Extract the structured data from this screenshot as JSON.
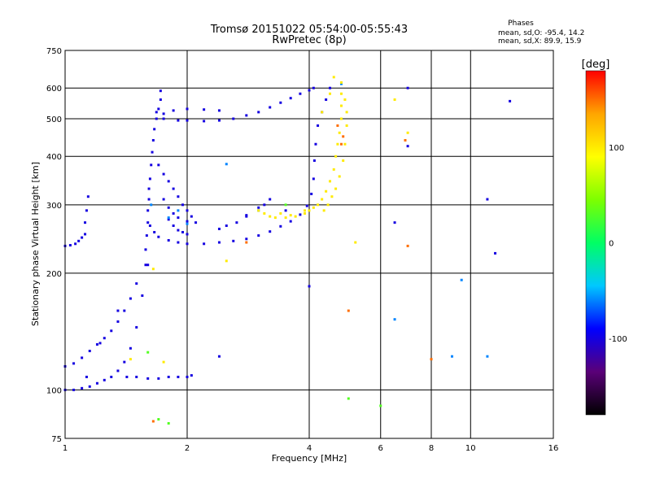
{
  "chart_data": {
    "type": "scatter",
    "title": "Tromsø 20151022 05:54:00-05:55:43",
    "subtitle": "RwPretec (8p)",
    "xlabel": "Frequency [MHz]",
    "ylabel": "Stationary phase Virtual Height [km]",
    "x_scale": "log",
    "y_scale": "log",
    "xlim": [
      1,
      16
    ],
    "ylim": [
      75,
      750
    ],
    "x_ticks": [
      1,
      2,
      4,
      6,
      8,
      10,
      16
    ],
    "y_ticks": [
      75,
      100,
      200,
      300,
      400,
      500,
      600,
      750
    ],
    "x_grid": [
      1,
      2,
      4,
      6,
      8,
      10,
      16
    ],
    "y_grid": [
      100,
      200,
      300,
      400,
      500,
      600
    ],
    "grid": true,
    "phases_header": "Phases",
    "phase_stats": [
      "mean, sd,O:  -95.4, 14.2",
      "mean, sd,X:  89.9, 15.9"
    ],
    "colorbar": {
      "label": "[deg]",
      "range": [
        -180,
        180
      ],
      "ticks": [
        100,
        0,
        -100
      ],
      "colors": [
        "#000000",
        "#5a0078",
        "#0000ff",
        "#00c8ff",
        "#00ff64",
        "#7dff00",
        "#ffff00",
        "#ffa500",
        "#ff0000"
      ]
    },
    "series": [
      {
        "phase": -100,
        "points": [
          [
            1.0,
            100
          ],
          [
            1.05,
            100
          ],
          [
            1.1,
            101
          ],
          [
            1.15,
            102
          ],
          [
            1.2,
            104
          ],
          [
            1.25,
            106
          ],
          [
            1.3,
            108
          ],
          [
            1.35,
            112
          ],
          [
            1.4,
            118
          ],
          [
            1.45,
            128
          ],
          [
            1.5,
            145
          ],
          [
            1.55,
            175
          ],
          [
            1.6,
            210
          ],
          [
            1.0,
            115
          ],
          [
            1.05,
            117
          ],
          [
            1.1,
            121
          ],
          [
            1.15,
            126
          ],
          [
            1.2,
            131
          ],
          [
            1.25,
            136
          ],
          [
            1.3,
            142
          ],
          [
            1.35,
            150
          ],
          [
            1.4,
            160
          ],
          [
            1.45,
            172
          ],
          [
            1.5,
            188
          ],
          [
            1.0,
            235
          ],
          [
            1.03,
            236
          ],
          [
            1.06,
            238
          ],
          [
            1.08,
            242
          ],
          [
            1.1,
            247
          ],
          [
            1.12,
            252
          ],
          [
            1.12,
            270
          ],
          [
            1.13,
            290
          ],
          [
            1.14,
            315
          ],
          [
            1.42,
            108
          ],
          [
            1.5,
            108
          ],
          [
            1.6,
            107
          ],
          [
            1.7,
            107
          ],
          [
            1.8,
            108
          ],
          [
            1.9,
            108
          ],
          [
            2.0,
            108
          ],
          [
            2.05,
            109
          ],
          [
            1.58,
            210
          ],
          [
            1.58,
            230
          ],
          [
            1.59,
            250
          ],
          [
            1.6,
            270
          ],
          [
            1.6,
            290
          ],
          [
            1.61,
            310
          ],
          [
            1.61,
            330
          ],
          [
            1.62,
            350
          ],
          [
            1.63,
            380
          ],
          [
            1.64,
            410
          ],
          [
            1.65,
            440
          ],
          [
            1.66,
            470
          ],
          [
            1.68,
            500
          ],
          [
            1.7,
            530
          ],
          [
            1.72,
            560
          ],
          [
            1.72,
            590
          ],
          [
            1.62,
            265
          ],
          [
            1.66,
            255
          ],
          [
            1.7,
            248
          ],
          [
            1.8,
            243
          ],
          [
            1.9,
            240
          ],
          [
            2.0,
            238
          ],
          [
            2.2,
            238
          ],
          [
            2.4,
            240
          ],
          [
            2.6,
            242
          ],
          [
            2.8,
            245
          ],
          [
            3.0,
            250
          ],
          [
            3.2,
            256
          ],
          [
            3.4,
            264
          ],
          [
            3.6,
            272
          ],
          [
            3.8,
            283
          ],
          [
            3.95,
            298
          ],
          [
            4.05,
            320
          ],
          [
            4.1,
            350
          ],
          [
            4.12,
            390
          ],
          [
            4.15,
            430
          ],
          [
            4.2,
            480
          ],
          [
            4.3,
            520
          ],
          [
            4.4,
            560
          ],
          [
            1.75,
            500
          ],
          [
            1.9,
            495
          ],
          [
            2.0,
            495
          ],
          [
            2.2,
            493
          ],
          [
            2.4,
            495
          ],
          [
            2.6,
            500
          ],
          [
            2.8,
            510
          ],
          [
            3.0,
            520
          ],
          [
            3.2,
            535
          ],
          [
            3.4,
            550
          ],
          [
            3.6,
            565
          ],
          [
            3.8,
            580
          ],
          [
            4.0,
            592
          ],
          [
            4.1,
            600
          ],
          [
            1.68,
            520
          ],
          [
            1.75,
            515
          ],
          [
            1.85,
            525
          ],
          [
            2.0,
            530
          ],
          [
            2.2,
            528
          ],
          [
            2.4,
            525
          ],
          [
            1.7,
            380
          ],
          [
            1.75,
            360
          ],
          [
            1.8,
            345
          ],
          [
            1.85,
            330
          ],
          [
            1.9,
            315
          ],
          [
            1.95,
            300
          ],
          [
            2.0,
            290
          ],
          [
            2.05,
            280
          ],
          [
            1.75,
            310
          ],
          [
            1.8,
            295
          ],
          [
            1.85,
            285
          ],
          [
            1.9,
            278
          ],
          [
            2.0,
            272
          ],
          [
            2.1,
            270
          ],
          [
            1.8,
            275
          ],
          [
            1.85,
            265
          ],
          [
            1.9,
            258
          ],
          [
            1.95,
            255
          ],
          [
            2.0,
            252
          ],
          [
            2.4,
            260
          ],
          [
            2.5,
            265
          ],
          [
            2.65,
            270
          ],
          [
            2.8,
            282
          ],
          [
            3.0,
            295
          ],
          [
            3.1,
            300
          ],
          [
            3.2,
            310
          ],
          [
            2.8,
            280
          ],
          [
            3.5,
            290
          ],
          [
            4.5,
            600
          ],
          [
            7.0,
            600
          ],
          [
            12.5,
            555
          ],
          [
            11.0,
            310
          ],
          [
            11.5,
            225
          ],
          [
            6.5,
            270
          ],
          [
            7.0,
            425
          ],
          [
            4.0,
            185
          ],
          [
            2.4,
            122
          ],
          [
            1.13,
            108
          ],
          [
            1.22,
            132
          ],
          [
            1.35,
            160
          ]
        ]
      },
      {
        "phase": -60,
        "points": [
          [
            1.63,
            300
          ],
          [
            1.9,
            290
          ],
          [
            1.8,
            278
          ],
          [
            2.0,
            268
          ],
          [
            3.0,
            290
          ],
          [
            2.5,
            382
          ],
          [
            9.0,
            122
          ],
          [
            9.5,
            192
          ],
          [
            11.0,
            122
          ],
          [
            6.5,
            152
          ],
          [
            4.8,
            615
          ]
        ]
      },
      {
        "phase": 100,
        "points": [
          [
            3.0,
            290
          ],
          [
            3.1,
            285
          ],
          [
            3.2,
            280
          ],
          [
            3.3,
            278
          ],
          [
            3.5,
            278
          ],
          [
            3.7,
            280
          ],
          [
            3.9,
            285
          ],
          [
            4.0,
            290
          ],
          [
            4.1,
            295
          ],
          [
            4.2,
            300
          ],
          [
            4.3,
            310
          ],
          [
            4.4,
            325
          ],
          [
            4.5,
            345
          ],
          [
            4.6,
            370
          ],
          [
            4.65,
            400
          ],
          [
            4.7,
            430
          ],
          [
            4.75,
            460
          ],
          [
            4.8,
            500
          ],
          [
            4.8,
            540
          ],
          [
            4.8,
            580
          ],
          [
            4.8,
            620
          ],
          [
            4.35,
            290
          ],
          [
            4.45,
            300
          ],
          [
            4.55,
            315
          ],
          [
            4.65,
            330
          ],
          [
            4.75,
            355
          ],
          [
            4.85,
            390
          ],
          [
            4.9,
            430
          ],
          [
            4.95,
            480
          ],
          [
            4.95,
            520
          ],
          [
            4.9,
            560
          ],
          [
            3.4,
            285
          ],
          [
            3.6,
            282
          ],
          [
            3.9,
            290
          ],
          [
            4.3,
            520
          ],
          [
            4.5,
            580
          ],
          [
            4.6,
            640
          ],
          [
            1.75,
            118
          ],
          [
            2.5,
            215
          ],
          [
            1.45,
            120
          ],
          [
            5.2,
            240
          ],
          [
            6.5,
            560
          ],
          [
            7.0,
            460
          ],
          [
            1.65,
            205
          ]
        ]
      },
      {
        "phase": 150,
        "points": [
          [
            4.7,
            480
          ],
          [
            4.8,
            430
          ],
          [
            4.85,
            450
          ],
          [
            5.0,
            160
          ],
          [
            6.9,
            440
          ],
          [
            7.0,
            235
          ],
          [
            8.0,
            120
          ],
          [
            2.8,
            240
          ],
          [
            1.65,
            83
          ]
        ]
      },
      {
        "phase": 30,
        "points": [
          [
            5.0,
            95
          ],
          [
            6.0,
            91
          ],
          [
            1.7,
            84
          ],
          [
            1.8,
            82
          ],
          [
            1.6,
            125
          ],
          [
            3.5,
            300
          ]
        ]
      }
    ]
  }
}
